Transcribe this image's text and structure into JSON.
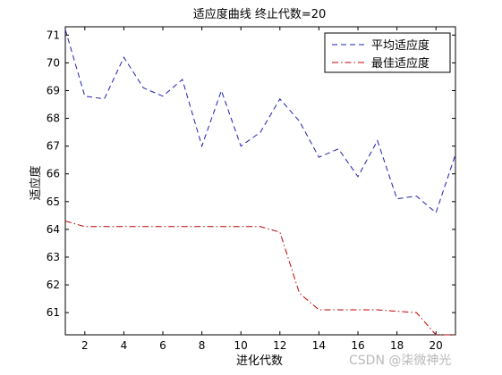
{
  "chart_data": {
    "type": "line",
    "title": "适应度曲线  终止代数=20",
    "xlabel": "进化代数",
    "ylabel": "适应度",
    "xlim": [
      1,
      21
    ],
    "ylim": [
      60.2,
      71.3
    ],
    "xticks": [
      2,
      4,
      6,
      8,
      10,
      12,
      14,
      16,
      18,
      20
    ],
    "yticks": [
      61,
      62,
      63,
      64,
      65,
      66,
      67,
      68,
      69,
      70,
      71
    ],
    "grid": false,
    "legend_position": "top-right",
    "x": [
      1,
      2,
      3,
      4,
      5,
      6,
      7,
      8,
      9,
      10,
      11,
      12,
      13,
      14,
      15,
      16,
      17,
      18,
      19,
      20,
      21
    ],
    "series": [
      {
        "name": "平均适应度",
        "color": "#1f1fb0",
        "dash": "dashed",
        "values": [
          71.2,
          68.8,
          68.7,
          70.2,
          69.1,
          68.8,
          69.4,
          67.0,
          69.0,
          67.0,
          67.5,
          68.7,
          67.9,
          66.6,
          66.9,
          65.9,
          67.2,
          65.1,
          65.2,
          64.6,
          66.7
        ]
      },
      {
        "name": "最佳适应度",
        "color": "#c00000",
        "dash": "dashdot",
        "values": [
          64.3,
          64.1,
          64.1,
          64.1,
          64.1,
          64.1,
          64.1,
          64.1,
          64.1,
          64.1,
          64.1,
          63.9,
          61.7,
          61.1,
          61.1,
          61.1,
          61.1,
          61.05,
          61.0,
          60.2,
          60.2
        ]
      }
    ]
  },
  "watermark": "CSDN @柒微神光"
}
